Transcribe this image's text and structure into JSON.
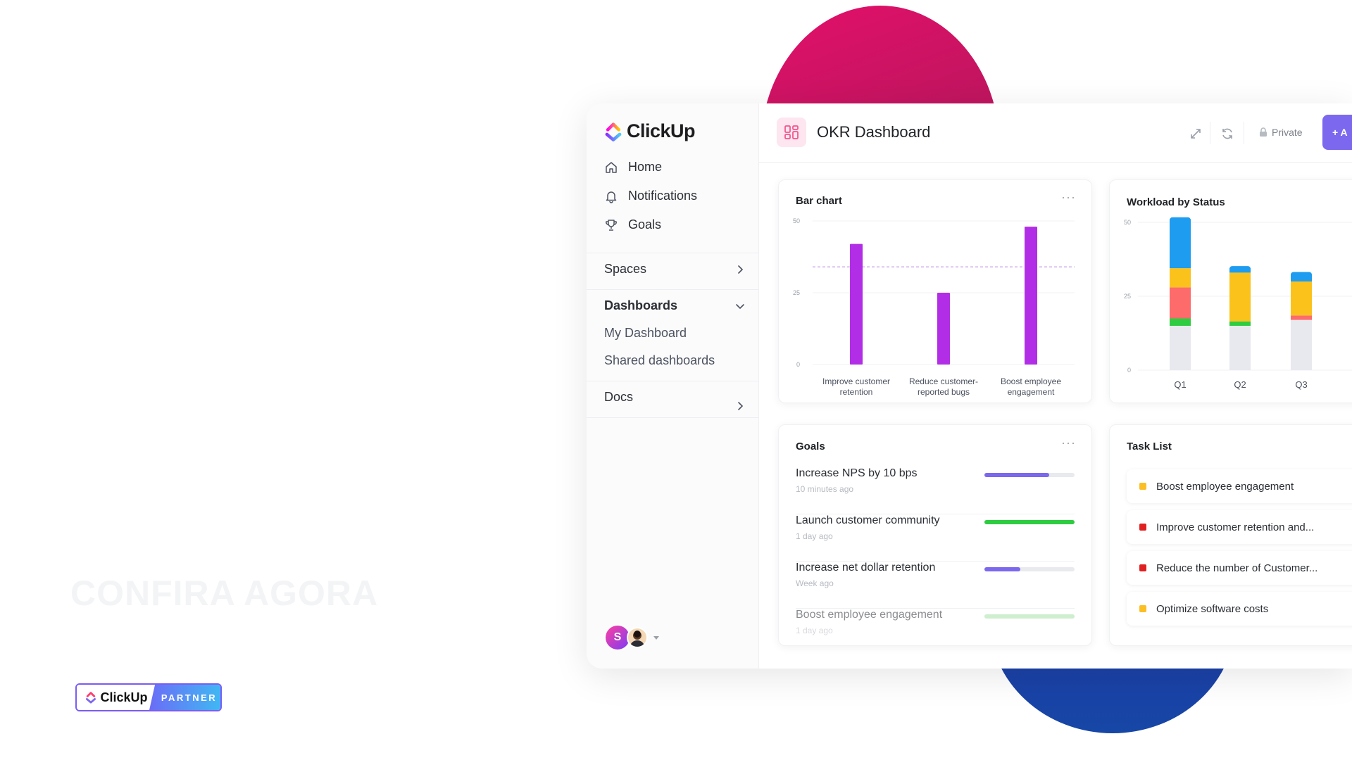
{
  "promo": {
    "cta": "CONFIRA AGORA",
    "partner_brand": "ClickUp",
    "partner_label": "PARTNER"
  },
  "sidebar": {
    "brand": "ClickUp",
    "nav": [
      {
        "label": "Home",
        "icon": "home-icon"
      },
      {
        "label": "Notifications",
        "icon": "bell-icon"
      },
      {
        "label": "Goals",
        "icon": "trophy-icon"
      }
    ],
    "spaces": "Spaces",
    "dashboards": "Dashboards",
    "dashboard_items": [
      "My Dashboard",
      "Shared dashboards"
    ],
    "docs": "Docs",
    "avatar_initial": "S"
  },
  "header": {
    "title": "OKR Dashboard",
    "private_label": "Private",
    "add_label": "+ A"
  },
  "bar_card": {
    "title": "Bar chart"
  },
  "workload_card": {
    "title": "Workload by Status"
  },
  "goals_card": {
    "title": "Goals",
    "items": [
      {
        "name": "Increase NPS by 10 bps",
        "time": "10 minutes ago",
        "progress": 0.72,
        "color": "#7b68ee"
      },
      {
        "name": "Launch customer community",
        "time": "1 day ago",
        "progress": 1.0,
        "color": "#2ecc40"
      },
      {
        "name": "Increase net dollar retention",
        "time": "Week ago",
        "progress": 0.4,
        "color": "#7b68ee"
      },
      {
        "name": "Boost employee engagement",
        "time": "1 day ago",
        "progress": 1.0,
        "color": "#a5e3a8"
      }
    ]
  },
  "task_card": {
    "title": "Task List",
    "items": [
      {
        "label": "Boost employee engagement",
        "color": "#fbbf24"
      },
      {
        "label": "Improve customer retention and...",
        "color": "#e02020"
      },
      {
        "label": "Reduce the number of Customer...",
        "color": "#e02020"
      },
      {
        "label": "Optimize software costs",
        "color": "#fbbf24"
      }
    ]
  },
  "chart_data": [
    {
      "type": "bar",
      "title": "Bar chart",
      "categories": [
        "Improve customer retention",
        "Reduce customer-reported bugs",
        "Boost employee engagement"
      ],
      "category_lines": [
        [
          "Improve customer",
          "retention"
        ],
        [
          "Reduce customer-",
          "reported bugs"
        ],
        [
          "Boost employee",
          "engagement"
        ]
      ],
      "values": [
        42,
        25,
        48
      ],
      "target": 34,
      "ylim": [
        0,
        50
      ],
      "yticks": [
        0,
        25,
        50
      ],
      "color": "#b22ee6"
    },
    {
      "type": "bar",
      "title": "Workload by Status",
      "categories": [
        "Q1",
        "Q2",
        "Q3"
      ],
      "stacked": true,
      "series": [
        {
          "name": "gray",
          "color": "#e8e9ee",
          "values": [
            15,
            15,
            17
          ]
        },
        {
          "name": "green",
          "color": "#2ecc40",
          "values": [
            2.5,
            1.5,
            0
          ]
        },
        {
          "name": "red",
          "color": "#fd6b6b",
          "values": [
            10.5,
            0,
            1.5
          ]
        },
        {
          "name": "yellow",
          "color": "#fbc21b",
          "values": [
            6.5,
            16.5,
            11.5
          ]
        },
        {
          "name": "blue",
          "color": "#1e9cf0",
          "values": [
            16.5,
            1.5,
            2.5
          ]
        }
      ],
      "ylim": [
        0,
        50
      ],
      "yticks": [
        0,
        25,
        50
      ]
    }
  ]
}
